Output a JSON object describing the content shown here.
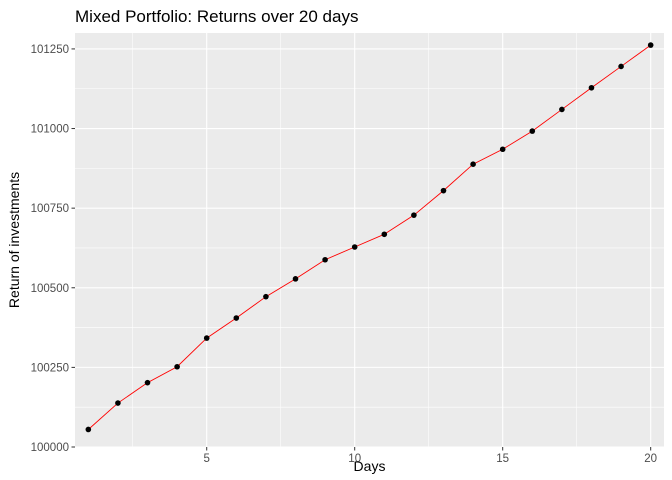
{
  "chart_data": {
    "type": "line",
    "title": "Mixed Portfolio: Returns over 20 days",
    "xlabel": "Days",
    "ylabel": "Return of investments",
    "xlim": [
      0.55,
      20.45
    ],
    "ylim": [
      100000,
      101300
    ],
    "x_ticks": [
      5,
      10,
      15,
      20
    ],
    "y_ticks": [
      100000,
      100250,
      100500,
      100750,
      101000,
      101250
    ],
    "x_tick_labels": [
      "5",
      "10",
      "15",
      "20"
    ],
    "y_tick_labels": [
      "100000",
      "100250",
      "100500",
      "100750",
      "101000",
      "101250"
    ],
    "grid": true,
    "x": [
      1,
      2,
      3,
      4,
      5,
      6,
      7,
      8,
      9,
      10,
      11,
      12,
      13,
      14,
      15,
      16,
      17,
      18,
      19,
      20
    ],
    "series": [
      {
        "values": [
          100055,
          100138,
          100202,
          100252,
          100342,
          100405,
          100472,
          100528,
          100588,
          100628,
          100668,
          100728,
          100805,
          100888,
          100935,
          100992,
          101060,
          101128,
          101195,
          101262
        ],
        "line_color": "#ff0000",
        "point_color": "#000000"
      }
    ],
    "panel_background": "#ebebeb",
    "grid_color": "#ffffff"
  }
}
